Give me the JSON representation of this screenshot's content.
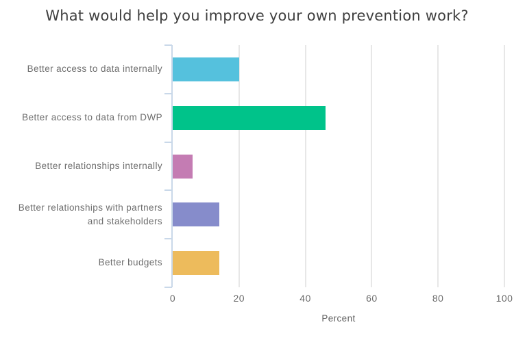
{
  "chart_data": {
    "type": "bar",
    "orientation": "horizontal",
    "title": "What would help you improve your own prevention work?",
    "xlabel": "Percent",
    "categories": [
      "Better access to data internally",
      "Better access to data from DWP",
      "Better relationships internally",
      "Better relationships with partners and stakeholders",
      "Better budgets"
    ],
    "values": [
      20,
      46,
      6,
      14,
      14
    ],
    "bar_colors": [
      "#55C1DD",
      "#00C38A",
      "#C47CB3",
      "#868CCB",
      "#EDBB5C"
    ],
    "x_ticks": [
      0,
      20,
      40,
      60,
      80,
      100
    ],
    "xlim": [
      0,
      100
    ],
    "grid": true,
    "legend": "none",
    "colors": {
      "axis": "#C9D8E9",
      "gridline": "#E7E7E7",
      "category_text": "#6E6E6E",
      "tick_text": "#6B6B6B",
      "axis_title_text": "#5F5F5F",
      "title_text": "#3F3F3F"
    }
  }
}
